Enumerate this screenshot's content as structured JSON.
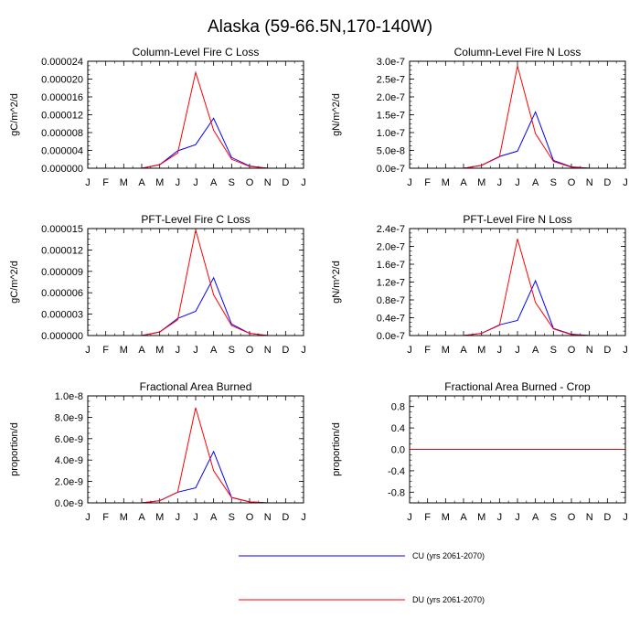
{
  "figure": {
    "title": "Alaska (59-66.5N,170-140W)"
  },
  "chart_data": [
    {
      "type": "line",
      "title": "Column-Level Fire C Loss",
      "xlabel": "",
      "ylabel": "gC/m^2/d",
      "x_tick_labels": [
        "J",
        "F",
        "M",
        "A",
        "M",
        "J",
        "J",
        "A",
        "S",
        "O",
        "N",
        "D",
        "J"
      ],
      "y_ticks": [
        0,
        4e-06,
        8e-06,
        1.2e-05,
        1.6e-05,
        2e-05,
        2.4e-05
      ],
      "y_tick_labels": [
        "0.000000",
        "0.000004",
        "0.000008",
        "0.000012",
        "0.000016",
        "0.000020",
        "0.000024"
      ],
      "ylim": [
        0,
        2.4e-05
      ],
      "series": [
        {
          "name": "CU (yrs 2061-2070)",
          "color": "#0000ff",
          "values": [
            0,
            0,
            0,
            0,
            8e-07,
            3.9e-06,
            5.3e-06,
            1.12e-05,
            2.4e-06,
            5e-07,
            0,
            0,
            0
          ]
        },
        {
          "name": "DU (yrs 2061-2070)",
          "color": "#ff0000",
          "values": [
            0,
            0,
            0,
            0,
            8e-07,
            3.4e-06,
            2.15e-05,
            8.5e-06,
            2e-06,
            4e-07,
            0,
            0,
            0
          ]
        }
      ]
    },
    {
      "type": "line",
      "title": "Column-Level Fire N Loss",
      "xlabel": "",
      "ylabel": "gN/m^2/d",
      "x_tick_labels": [
        "J",
        "F",
        "M",
        "A",
        "M",
        "J",
        "J",
        "A",
        "S",
        "O",
        "N",
        "D",
        "J"
      ],
      "y_ticks": [
        0,
        5e-08,
        1e-07,
        1.5e-07,
        2e-07,
        2.5e-07,
        3e-07
      ],
      "y_tick_labels": [
        "0.0e-7",
        "5.0e-8",
        "1.0e-7",
        "1.5e-7",
        "2.0e-7",
        "2.5e-7",
        "3.0e-7"
      ],
      "ylim": [
        0,
        3e-07
      ],
      "series": [
        {
          "name": "CU (yrs 2061-2070)",
          "color": "#0000ff",
          "values": [
            0,
            0,
            0,
            0,
            8e-09,
            3.3e-08,
            4.8e-08,
            1.58e-07,
            2.2e-08,
            4e-09,
            0,
            0,
            0
          ]
        },
        {
          "name": "DU (yrs 2061-2070)",
          "color": "#ff0000",
          "values": [
            0,
            0,
            0,
            0,
            8e-09,
            3.2e-08,
            2.87e-07,
            9.7e-08,
            1.9e-08,
            3e-09,
            0,
            0,
            0
          ]
        }
      ]
    },
    {
      "type": "line",
      "title": "PFT-Level Fire C Loss",
      "xlabel": "",
      "ylabel": "gC/m^2/d",
      "x_tick_labels": [
        "J",
        "F",
        "M",
        "A",
        "M",
        "J",
        "J",
        "A",
        "S",
        "O",
        "N",
        "D",
        "J"
      ],
      "y_ticks": [
        0,
        3e-06,
        6e-06,
        9e-06,
        1.2e-05,
        1.5e-05
      ],
      "y_tick_labels": [
        "0.000000",
        "0.000003",
        "0.000006",
        "0.000009",
        "0.000012",
        "0.000015"
      ],
      "ylim": [
        0,
        1.5e-05
      ],
      "series": [
        {
          "name": "CU (yrs 2061-2070)",
          "color": "#0000ff",
          "values": [
            0,
            0,
            0,
            0,
            5e-07,
            2.4e-06,
            3.4e-06,
            8.1e-06,
            1.6e-06,
            3e-07,
            0,
            0,
            0
          ]
        },
        {
          "name": "DU (yrs 2061-2070)",
          "color": "#ff0000",
          "values": [
            0,
            0,
            0,
            0,
            5e-07,
            2.2e-06,
            1.48e-05,
            5.7e-06,
            1.4e-06,
            3e-07,
            0,
            0,
            0
          ]
        }
      ]
    },
    {
      "type": "line",
      "title": "PFT-Level Fire N Loss",
      "xlabel": "",
      "ylabel": "gN/m^2/d",
      "x_tick_labels": [
        "J",
        "F",
        "M",
        "A",
        "M",
        "J",
        "J",
        "A",
        "S",
        "O",
        "N",
        "D",
        "J"
      ],
      "y_ticks": [
        0,
        4e-08,
        8e-08,
        1.2e-07,
        1.6e-07,
        2e-07,
        2.4e-07
      ],
      "y_tick_labels": [
        "0.0e-7",
        "0.4e-7",
        "0.8e-7",
        "1.2e-7",
        "1.6e-7",
        "2.0e-7",
        "2.4e-7"
      ],
      "ylim": [
        0,
        2.4e-07
      ],
      "series": [
        {
          "name": "CU (yrs 2061-2070)",
          "color": "#0000ff",
          "values": [
            0,
            0,
            0,
            0,
            5e-09,
            2.4e-08,
            3.4e-08,
            1.23e-07,
            1.6e-08,
            3e-09,
            0,
            0,
            0
          ]
        },
        {
          "name": "DU (yrs 2061-2070)",
          "color": "#ff0000",
          "values": [
            0,
            0,
            0,
            0,
            5e-09,
            2.3e-08,
            2.17e-07,
            7.4e-08,
            1.5e-08,
            2e-09,
            0,
            0,
            0
          ]
        }
      ]
    },
    {
      "type": "line",
      "title": "Fractional Area Burned",
      "xlabel": "",
      "ylabel": "proportion/d",
      "x_tick_labels": [
        "J",
        "F",
        "M",
        "A",
        "M",
        "J",
        "J",
        "A",
        "S",
        "O",
        "N",
        "D",
        "J"
      ],
      "y_ticks": [
        0,
        2e-09,
        4e-09,
        6e-09,
        8e-09,
        1e-08
      ],
      "y_tick_labels": [
        "0.0e-9",
        "2.0e-9",
        "4.0e-9",
        "6.0e-9",
        "8.0e-9",
        "1.0e-8"
      ],
      "ylim": [
        0,
        1e-08
      ],
      "series": [
        {
          "name": "CU (yrs 2061-2070)",
          "color": "#0000ff",
          "values": [
            0,
            0,
            0,
            0,
            2e-10,
            1e-09,
            1.4e-09,
            4.8e-09,
            5e-10,
            1e-10,
            0,
            0,
            0
          ]
        },
        {
          "name": "DU (yrs 2061-2070)",
          "color": "#ff0000",
          "values": [
            0,
            0,
            0,
            0,
            2e-10,
            1e-09,
            8.9e-09,
            3e-09,
            5e-10,
            1e-10,
            0,
            0,
            0
          ]
        }
      ]
    },
    {
      "type": "line",
      "title": "Fractional Area Burned - Crop",
      "xlabel": "",
      "ylabel": "proportion/d",
      "x_tick_labels": [
        "J",
        "F",
        "M",
        "A",
        "M",
        "J",
        "J",
        "A",
        "S",
        "O",
        "N",
        "D",
        "J"
      ],
      "y_ticks": [
        -0.8,
        -0.4,
        0,
        0.4,
        0.8
      ],
      "y_tick_labels": [
        "-0.8",
        "-0.4",
        "0.0",
        "0.4",
        "0.8"
      ],
      "ylim": [
        -1,
        1
      ],
      "series": [
        {
          "name": "CU (yrs 2061-2070)",
          "color": "#0000ff",
          "values": [
            0,
            0,
            0,
            0,
            0,
            0,
            0,
            0,
            0,
            0,
            0,
            0,
            0
          ]
        },
        {
          "name": "DU (yrs 2061-2070)",
          "color": "#ff0000",
          "values": [
            0,
            0,
            0,
            0,
            0,
            0,
            0,
            0,
            0,
            0,
            0,
            0,
            0
          ]
        }
      ]
    }
  ],
  "legend": [
    {
      "label": "CU (yrs 2061-2070)",
      "color": "#0000ff"
    },
    {
      "label": "DU (yrs 2061-2070)",
      "color": "#ff0000"
    }
  ]
}
